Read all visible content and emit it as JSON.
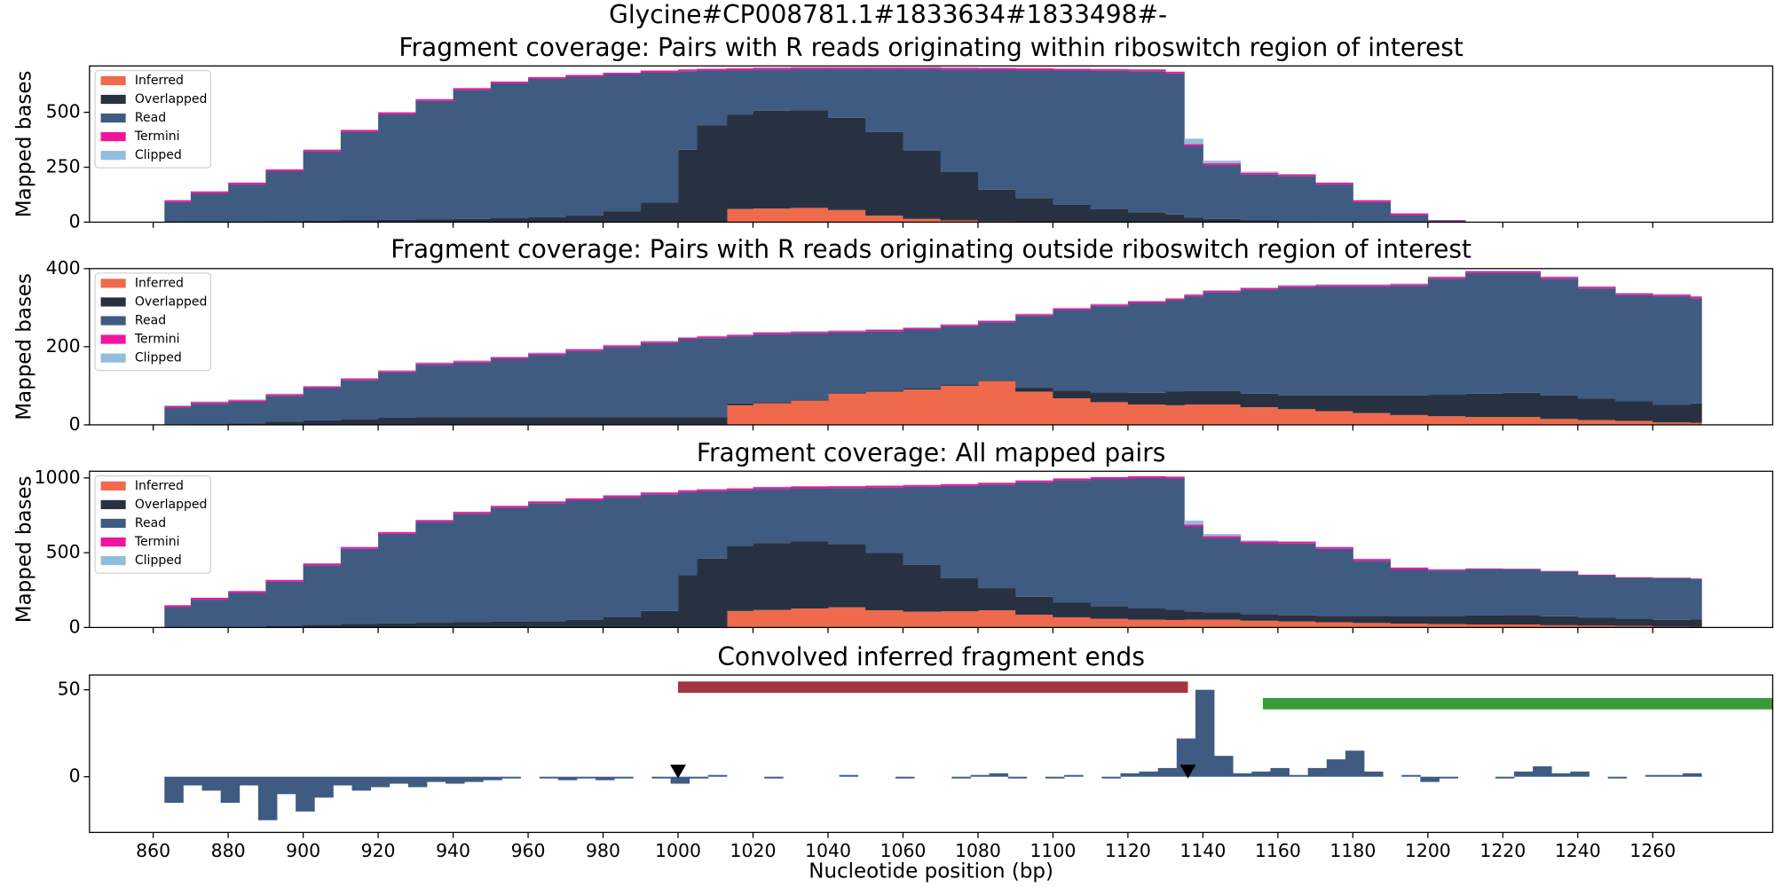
{
  "title": "Glycine#CP008781.1#1833634#1833498#-",
  "chart_data": [
    {
      "type": "stacked_step",
      "title": "Fragment coverage: Pairs with R reads originating within riboswitch region of interest",
      "ylabel": "Mapped bases",
      "legend": "upper left",
      "show_xtick_labels": false,
      "xlim": [
        843,
        1292
      ],
      "ylim": [
        0,
        711
      ],
      "yticks": [
        0,
        250,
        500
      ],
      "xticks": [
        860,
        880,
        900,
        920,
        940,
        960,
        980,
        1000,
        1020,
        1040,
        1060,
        1080,
        1100,
        1120,
        1140,
        1160,
        1180,
        1200,
        1220,
        1240,
        1260
      ],
      "x": [
        863,
        870,
        880,
        890,
        900,
        910,
        920,
        930,
        940,
        950,
        960,
        970,
        980,
        990,
        1000,
        1005,
        1013,
        1020,
        1030,
        1040,
        1050,
        1060,
        1070,
        1080,
        1090,
        1100,
        1110,
        1120,
        1130,
        1135,
        1140,
        1150,
        1160,
        1170,
        1180,
        1190,
        1200,
        1210,
        1220,
        1230,
        1240,
        1250,
        1260,
        1270
      ],
      "series": [
        {
          "name": "Inferred",
          "color": "#ef6a4c",
          "values": [
            0,
            0,
            0,
            0,
            0,
            0,
            0,
            0,
            0,
            0,
            0,
            0,
            0,
            0,
            0,
            0,
            60,
            62,
            65,
            55,
            30,
            15,
            8,
            3,
            0,
            0,
            0,
            0,
            0,
            0,
            0,
            0,
            0,
            0,
            0,
            0,
            0,
            0,
            0,
            0,
            0,
            0,
            0,
            0
          ]
        },
        {
          "name": "Overlapped",
          "color": "#283142",
          "values": [
            0,
            0,
            2,
            4,
            6,
            8,
            10,
            12,
            15,
            18,
            22,
            30,
            50,
            90,
            330,
            440,
            430,
            445,
            445,
            420,
            380,
            310,
            220,
            145,
            110,
            80,
            60,
            45,
            35,
            20,
            15,
            8,
            5,
            3,
            2,
            1,
            0,
            0,
            0,
            0,
            0,
            0,
            0,
            0
          ]
        },
        {
          "name": "Read",
          "color": "#3f5b82",
          "values": [
            92,
            132,
            170,
            228,
            316,
            404,
            482,
            540,
            587,
            614,
            630,
            632,
            622,
            592,
            357,
            250,
            202,
            188,
            187,
            222,
            287,
            372,
            467,
            546,
            582,
            610,
            629,
            642,
            642,
            327,
            245,
            209,
            204,
            169,
            90,
            31,
            7,
            1,
            0,
            0,
            0,
            0,
            0,
            0
          ]
        },
        {
          "name": "Termini",
          "color": "#f0149e",
          "values": [
            8,
            8,
            8,
            8,
            8,
            8,
            8,
            8,
            8,
            8,
            8,
            8,
            8,
            8,
            8,
            8,
            8,
            8,
            8,
            8,
            8,
            8,
            8,
            8,
            8,
            8,
            8,
            8,
            8,
            8,
            8,
            8,
            8,
            8,
            8,
            8,
            3,
            1,
            0,
            0,
            0,
            0,
            0,
            0
          ]
        },
        {
          "name": "Clipped",
          "color": "#93bedb",
          "values": [
            0,
            0,
            0,
            0,
            0,
            0,
            0,
            0,
            0,
            0,
            0,
            0,
            0,
            0,
            0,
            0,
            0,
            0,
            0,
            0,
            0,
            0,
            0,
            0,
            0,
            0,
            0,
            0,
            0,
            25,
            12,
            5,
            3,
            0,
            0,
            0,
            0,
            0,
            0,
            0,
            0,
            0,
            0,
            0
          ]
        }
      ]
    },
    {
      "type": "stacked_step",
      "title": "Fragment coverage: Pairs with R reads originating outside riboswitch region of interest",
      "ylabel": "Mapped bases",
      "legend": "upper left",
      "show_xtick_labels": false,
      "xlim": [
        843,
        1292
      ],
      "ylim": [
        0,
        400
      ],
      "yticks": [
        0,
        200,
        400
      ],
      "xticks": [
        860,
        880,
        900,
        920,
        940,
        960,
        980,
        1000,
        1020,
        1040,
        1060,
        1080,
        1100,
        1120,
        1140,
        1160,
        1180,
        1200,
        1220,
        1240,
        1260
      ],
      "x": [
        863,
        870,
        880,
        890,
        900,
        910,
        920,
        930,
        940,
        950,
        960,
        970,
        980,
        990,
        1000,
        1005,
        1013,
        1020,
        1030,
        1040,
        1050,
        1060,
        1070,
        1080,
        1090,
        1100,
        1110,
        1120,
        1130,
        1135,
        1140,
        1150,
        1160,
        1170,
        1180,
        1190,
        1200,
        1210,
        1220,
        1230,
        1240,
        1250,
        1260,
        1270
      ],
      "series": [
        {
          "name": "Inferred",
          "color": "#ef6a4c",
          "values": [
            0,
            0,
            0,
            0,
            0,
            0,
            0,
            0,
            0,
            0,
            0,
            0,
            0,
            0,
            0,
            0,
            50,
            55,
            62,
            80,
            85,
            90,
            100,
            112,
            85,
            68,
            58,
            52,
            50,
            52,
            52,
            45,
            40,
            35,
            30,
            25,
            22,
            20,
            20,
            15,
            12,
            10,
            6,
            5
          ]
        },
        {
          "name": "Overlapped",
          "color": "#283142",
          "values": [
            0,
            2,
            4,
            8,
            12,
            15,
            18,
            20,
            20,
            20,
            20,
            20,
            20,
            20,
            20,
            20,
            5,
            3,
            3,
            3,
            3,
            3,
            3,
            3,
            10,
            20,
            25,
            30,
            35,
            35,
            35,
            35,
            35,
            40,
            45,
            50,
            55,
            60,
            62,
            60,
            55,
            50,
            45,
            50
          ]
        },
        {
          "name": "Read",
          "color": "#3f5b82",
          "values": [
            44,
            52,
            55,
            66,
            82,
            99,
            116,
            134,
            139,
            149,
            159,
            169,
            179,
            189,
            199,
            202,
            171,
            174,
            169,
            153,
            151,
            151,
            149,
            147,
            184,
            206,
            221,
            230,
            234,
            242,
            252,
            266,
            277,
            279,
            279,
            281,
            297,
            309,
            307,
            299,
            282,
            272,
            278,
            269
          ]
        },
        {
          "name": "Termini",
          "color": "#f0149e",
          "values": [
            4,
            4,
            4,
            4,
            4,
            4,
            4,
            4,
            4,
            4,
            4,
            4,
            4,
            4,
            4,
            4,
            4,
            4,
            4,
            4,
            4,
            4,
            4,
            4,
            4,
            4,
            4,
            4,
            4,
            4,
            4,
            4,
            4,
            4,
            4,
            4,
            4,
            4,
            4,
            4,
            4,
            4,
            4,
            4
          ]
        },
        {
          "name": "Clipped",
          "color": "#93bedb",
          "values": [
            2,
            2,
            2,
            2,
            2,
            2,
            2,
            2,
            2,
            2,
            2,
            2,
            2,
            2,
            2,
            2,
            2,
            2,
            2,
            2,
            2,
            2,
            2,
            2,
            2,
            2,
            2,
            2,
            2,
            2,
            2,
            2,
            2,
            2,
            2,
            2,
            2,
            2,
            2,
            2,
            2,
            2,
            2,
            2
          ]
        }
      ]
    },
    {
      "type": "stacked_step",
      "title": "Fragment coverage: All mapped pairs",
      "ylabel": "Mapped bases",
      "legend": "upper left",
      "show_xtick_labels": false,
      "xlim": [
        843,
        1292
      ],
      "ylim": [
        0,
        1045
      ],
      "yticks": [
        0,
        500,
        1000
      ],
      "xticks": [
        860,
        880,
        900,
        920,
        940,
        960,
        980,
        1000,
        1020,
        1040,
        1060,
        1080,
        1100,
        1120,
        1140,
        1160,
        1180,
        1200,
        1220,
        1240,
        1260
      ],
      "x": [
        863,
        870,
        880,
        890,
        900,
        910,
        920,
        930,
        940,
        950,
        960,
        970,
        980,
        990,
        1000,
        1005,
        1013,
        1020,
        1030,
        1040,
        1050,
        1060,
        1070,
        1080,
        1090,
        1100,
        1110,
        1120,
        1130,
        1135,
        1140,
        1150,
        1160,
        1170,
        1180,
        1190,
        1200,
        1210,
        1220,
        1230,
        1240,
        1250,
        1260,
        1270
      ],
      "series": [
        {
          "name": "Inferred",
          "color": "#ef6a4c",
          "values": [
            0,
            0,
            0,
            0,
            0,
            0,
            0,
            0,
            0,
            0,
            0,
            0,
            0,
            0,
            0,
            0,
            110,
            117,
            127,
            135,
            115,
            105,
            108,
            115,
            85,
            68,
            58,
            52,
            50,
            52,
            52,
            45,
            40,
            35,
            30,
            25,
            22,
            20,
            20,
            15,
            12,
            10,
            6,
            5
          ]
        },
        {
          "name": "Overlapped",
          "color": "#283142",
          "values": [
            0,
            2,
            6,
            12,
            18,
            23,
            28,
            32,
            35,
            38,
            42,
            50,
            70,
            110,
            350,
            460,
            435,
            448,
            448,
            423,
            383,
            313,
            223,
            148,
            120,
            100,
            85,
            75,
            70,
            55,
            50,
            43,
            40,
            43,
            47,
            51,
            55,
            60,
            62,
            60,
            55,
            50,
            45,
            50
          ]
        },
        {
          "name": "Read",
          "color": "#3f5b82",
          "values": [
            136,
            184,
            225,
            294,
            398,
            503,
            598,
            674,
            726,
            763,
            789,
            801,
            801,
            781,
            556,
            452,
            373,
            362,
            356,
            375,
            438,
            523,
            616,
            693,
            766,
            816,
            850,
            872,
            876,
            569,
            497,
            475,
            481,
            448,
            369,
            312,
            304,
            310,
            307,
            299,
            282,
            272,
            278,
            269
          ]
        },
        {
          "name": "Termini",
          "color": "#f0149e",
          "values": [
            12,
            12,
            12,
            12,
            12,
            12,
            12,
            12,
            12,
            12,
            12,
            12,
            12,
            12,
            12,
            12,
            12,
            12,
            12,
            12,
            12,
            12,
            12,
            12,
            12,
            12,
            12,
            12,
            12,
            12,
            12,
            12,
            12,
            12,
            12,
            12,
            7,
            5,
            4,
            4,
            4,
            4,
            4,
            4
          ]
        },
        {
          "name": "Clipped",
          "color": "#93bedb",
          "values": [
            2,
            2,
            2,
            2,
            2,
            2,
            2,
            2,
            2,
            2,
            2,
            2,
            2,
            2,
            2,
            2,
            2,
            2,
            2,
            2,
            2,
            2,
            2,
            2,
            2,
            2,
            2,
            2,
            2,
            27,
            14,
            7,
            5,
            2,
            2,
            2,
            2,
            2,
            2,
            2,
            2,
            2,
            2,
            2
          ]
        }
      ]
    },
    {
      "type": "bar",
      "title": "Convolved inferred fragment ends",
      "xlabel": "Nucleotide position (bp)",
      "show_xtick_labels": true,
      "color": "#3f5b82",
      "bar_width": 5,
      "xlim": [
        843,
        1292
      ],
      "ylim": [
        -32,
        58.5
      ],
      "yticks": [
        0,
        50
      ],
      "xticks": [
        860,
        880,
        900,
        920,
        940,
        960,
        980,
        1000,
        1020,
        1040,
        1060,
        1080,
        1100,
        1120,
        1140,
        1160,
        1180,
        1200,
        1220,
        1240,
        1260
      ],
      "x": [
        863,
        868,
        873,
        878,
        883,
        888,
        893,
        898,
        903,
        908,
        913,
        918,
        923,
        928,
        933,
        938,
        943,
        948,
        953,
        958,
        963,
        968,
        973,
        978,
        983,
        988,
        993,
        998,
        1003,
        1008,
        1013,
        1018,
        1023,
        1028,
        1033,
        1038,
        1043,
        1048,
        1053,
        1058,
        1063,
        1068,
        1073,
        1078,
        1083,
        1088,
        1093,
        1098,
        1103,
        1108,
        1113,
        1118,
        1123,
        1128,
        1133,
        1138,
        1143,
        1148,
        1153,
        1158,
        1163,
        1168,
        1173,
        1178,
        1183,
        1188,
        1193,
        1198,
        1203,
        1208,
        1213,
        1218,
        1223,
        1228,
        1233,
        1238,
        1243,
        1248,
        1253,
        1258,
        1263,
        1268
      ],
      "values": [
        -15,
        -5,
        -8,
        -15,
        -5,
        -25,
        -10,
        -20,
        -12,
        -5,
        -8,
        -6,
        -4,
        -6,
        -3,
        -4,
        -3,
        -2,
        -1,
        0,
        -1,
        -2,
        -1,
        -2,
        -1,
        0,
        -1,
        -4,
        -1,
        1,
        0,
        0,
        -1,
        0,
        0,
        0,
        1,
        0,
        0,
        -1,
        0,
        0,
        -1,
        1,
        2,
        -1,
        0,
        -1,
        1,
        0,
        -1,
        2,
        3,
        5,
        22,
        50,
        12,
        2,
        3,
        5,
        1,
        5,
        10,
        15,
        3,
        0,
        1,
        -3,
        -1,
        0,
        0,
        -1,
        3,
        6,
        2,
        3,
        0,
        -1,
        0,
        1,
        1,
        2
      ],
      "spans": [
        {
          "start": 1000,
          "end": 1136,
          "y": 51.5,
          "color": "#a4343f"
        },
        {
          "start": 1156,
          "end": 1292,
          "y": 42,
          "color": "#3a9a37"
        }
      ],
      "markers": {
        "x": [
          1000,
          1136
        ],
        "y": [
          3,
          3
        ],
        "color": "#000000"
      }
    }
  ]
}
